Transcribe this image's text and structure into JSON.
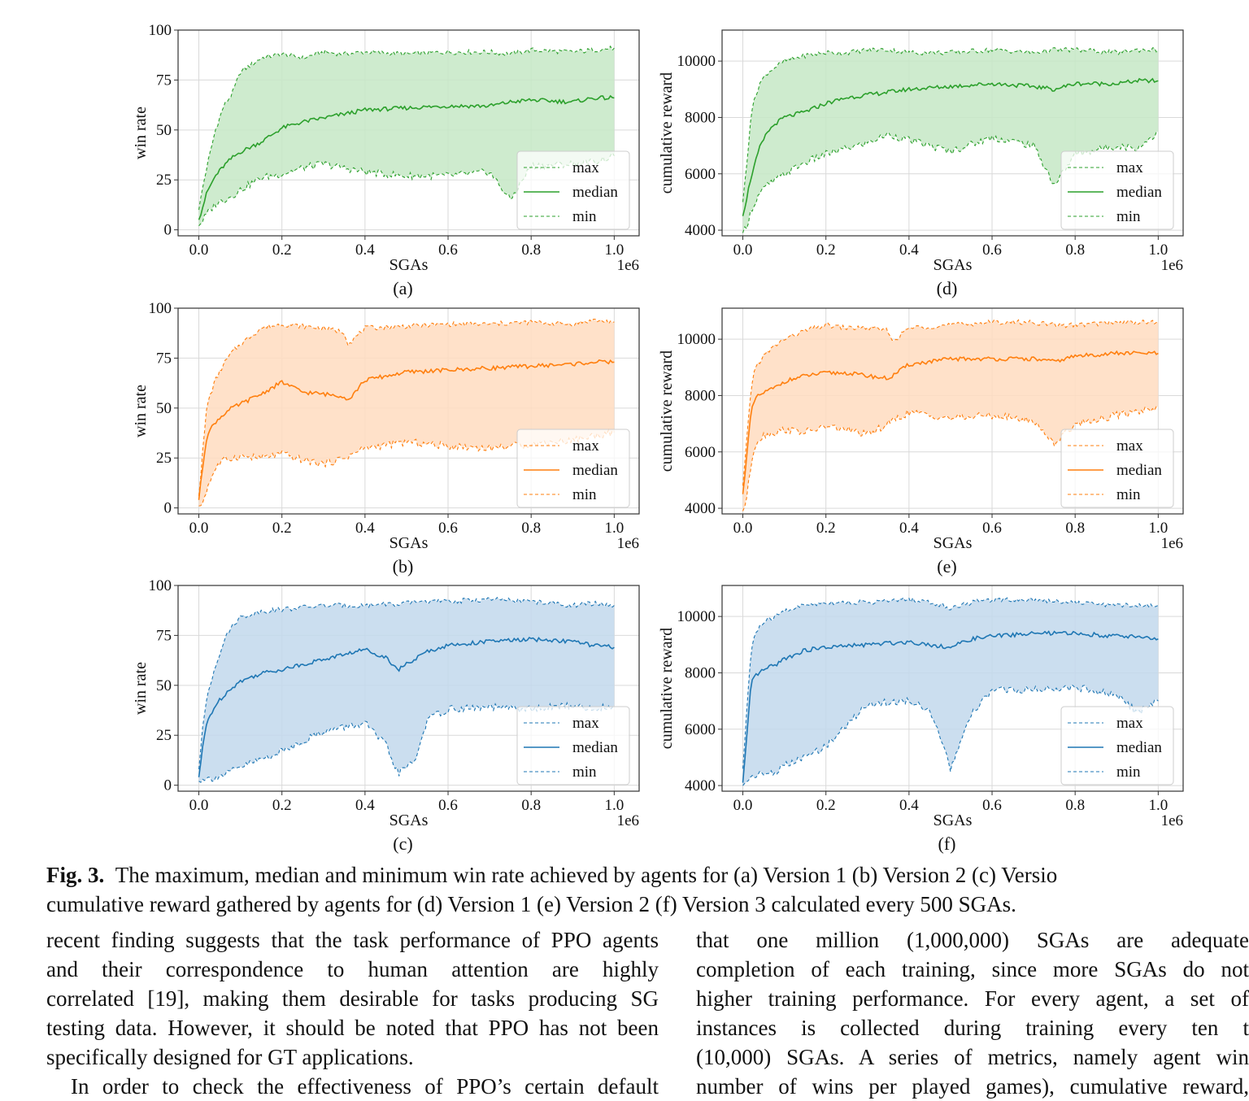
{
  "colors": {
    "green": "#2ca02c",
    "green_fill": "#c6e8c6",
    "orange": "#ff7f0e",
    "orange_fill": "#ffdcbf",
    "blue": "#1f77b4",
    "blue_fill": "#c2d8ec",
    "grid": "#d9d9d9",
    "axis": "#333333"
  },
  "legend": {
    "max": "max",
    "median": "median",
    "min": "min"
  },
  "chart_data": [
    {
      "id": "a",
      "panel_label": "(a)",
      "type": "line",
      "color_key": "green",
      "xlabel": "SGAs",
      "ylabel": "win rate",
      "x_offset_label": "1e6",
      "xlim": [
        -0.05,
        1.06
      ],
      "ylim": [
        -3,
        100
      ],
      "xticks": [
        0.0,
        0.2,
        0.4,
        0.6,
        0.8,
        1.0
      ],
      "xtick_labels": [
        "0.0",
        "0.2",
        "0.4",
        "0.6",
        "0.8",
        "1.0"
      ],
      "yticks": [
        0,
        25,
        50,
        75,
        100
      ],
      "ytick_labels": [
        "0",
        "25",
        "50",
        "75",
        "100"
      ],
      "legend_position": "lower-right",
      "grid": true,
      "x": [
        0.0,
        0.01,
        0.02,
        0.04,
        0.06,
        0.08,
        0.1,
        0.15,
        0.2,
        0.25,
        0.3,
        0.35,
        0.4,
        0.5,
        0.6,
        0.7,
        0.75,
        0.8,
        0.9,
        0.95,
        1.0
      ],
      "series": [
        {
          "name": "max",
          "style": "dashed",
          "values": [
            10,
            22,
            32,
            50,
            62,
            68,
            79,
            86,
            88,
            86,
            89,
            88,
            89,
            88,
            89,
            89,
            88,
            90,
            89,
            90,
            91
          ]
        },
        {
          "name": "median",
          "style": "solid",
          "values": [
            5,
            12,
            19,
            27,
            32,
            36,
            39,
            44,
            51,
            54,
            56,
            58,
            60,
            61,
            62,
            62,
            64,
            65,
            64,
            66,
            66
          ]
        },
        {
          "name": "min",
          "style": "dashed",
          "values": [
            2,
            5,
            8,
            13,
            15,
            17,
            20,
            26,
            28,
            31,
            33,
            31,
            29,
            27,
            27,
            29,
            15,
            32,
            33,
            34,
            37
          ]
        }
      ]
    },
    {
      "id": "d",
      "panel_label": "(d)",
      "type": "line",
      "color_key": "green",
      "xlabel": "SGAs",
      "ylabel": "cumulative reward",
      "x_offset_label": "1e6",
      "xlim": [
        -0.05,
        1.06
      ],
      "ylim": [
        3800,
        11100
      ],
      "xticks": [
        0.0,
        0.2,
        0.4,
        0.6,
        0.8,
        1.0
      ],
      "xtick_labels": [
        "0.0",
        "0.2",
        "0.4",
        "0.6",
        "0.8",
        "1.0"
      ],
      "yticks": [
        4000,
        6000,
        8000,
        10000
      ],
      "ytick_labels": [
        "4000",
        "6000",
        "8000",
        "10000"
      ],
      "legend_position": "lower-right",
      "grid": true,
      "x": [
        0.0,
        0.01,
        0.02,
        0.04,
        0.06,
        0.08,
        0.1,
        0.15,
        0.2,
        0.25,
        0.3,
        0.35,
        0.4,
        0.5,
        0.6,
        0.7,
        0.75,
        0.8,
        0.9,
        0.95,
        1.0
      ],
      "series": [
        {
          "name": "max",
          "style": "dashed",
          "values": [
            5000,
            6400,
            8200,
            9200,
            9600,
            9800,
            10000,
            10200,
            10300,
            10300,
            10400,
            10400,
            10300,
            10300,
            10400,
            10300,
            10400,
            10400,
            10300,
            10400,
            10400
          ]
        },
        {
          "name": "median",
          "style": "solid",
          "values": [
            4500,
            5200,
            5900,
            6900,
            7500,
            7800,
            8000,
            8200,
            8500,
            8700,
            8800,
            8900,
            9000,
            9100,
            9200,
            9100,
            9000,
            9200,
            9200,
            9300,
            9300
          ]
        },
        {
          "name": "min",
          "style": "dashed",
          "values": [
            3900,
            4200,
            4700,
            5300,
            5600,
            5800,
            6000,
            6400,
            6700,
            6900,
            7100,
            7400,
            7200,
            6800,
            7300,
            7000,
            5600,
            6700,
            7000,
            6900,
            7500
          ]
        }
      ]
    },
    {
      "id": "b",
      "panel_label": "(b)",
      "type": "line",
      "color_key": "orange",
      "xlabel": "SGAs",
      "ylabel": "win rate",
      "x_offset_label": "1e6",
      "xlim": [
        -0.05,
        1.06
      ],
      "ylim": [
        -3,
        100
      ],
      "xticks": [
        0.0,
        0.2,
        0.4,
        0.6,
        0.8,
        1.0
      ],
      "xtick_labels": [
        "0.0",
        "0.2",
        "0.4",
        "0.6",
        "0.8",
        "1.0"
      ],
      "yticks": [
        0,
        25,
        50,
        75,
        100
      ],
      "ytick_labels": [
        "0",
        "25",
        "50",
        "75",
        "100"
      ],
      "legend_position": "lower-right",
      "grid": true,
      "x": [
        0.0,
        0.01,
        0.02,
        0.04,
        0.06,
        0.08,
        0.1,
        0.15,
        0.2,
        0.25,
        0.3,
        0.35,
        0.36,
        0.4,
        0.5,
        0.6,
        0.7,
        0.8,
        0.9,
        0.95,
        1.0
      ],
      "series": [
        {
          "name": "max",
          "style": "dashed",
          "values": [
            6,
            30,
            52,
            64,
            72,
            78,
            82,
            90,
            92,
            91,
            90,
            88,
            82,
            90,
            91,
            92,
            92,
            93,
            92,
            94,
            93
          ]
        },
        {
          "name": "median",
          "style": "solid",
          "values": [
            4,
            22,
            37,
            43,
            47,
            50,
            52,
            57,
            63,
            58,
            57,
            56,
            54,
            64,
            68,
            69,
            70,
            71,
            72,
            73,
            73
          ]
        },
        {
          "name": "min",
          "style": "dashed",
          "values": [
            1,
            3,
            10,
            20,
            24,
            25,
            26,
            25,
            27,
            24,
            22,
            25,
            26,
            30,
            33,
            31,
            30,
            32,
            34,
            36,
            38
          ]
        }
      ]
    },
    {
      "id": "e",
      "panel_label": "(e)",
      "type": "line",
      "color_key": "orange",
      "xlabel": "SGAs",
      "ylabel": "cumulative reward",
      "x_offset_label": "1e6",
      "xlim": [
        -0.05,
        1.06
      ],
      "ylim": [
        3800,
        11100
      ],
      "xticks": [
        0.0,
        0.2,
        0.4,
        0.6,
        0.8,
        1.0
      ],
      "xtick_labels": [
        "0.0",
        "0.2",
        "0.4",
        "0.6",
        "0.8",
        "1.0"
      ],
      "yticks": [
        4000,
        6000,
        8000,
        10000
      ],
      "ytick_labels": [
        "4000",
        "6000",
        "8000",
        "10000"
      ],
      "legend_position": "lower-right",
      "grid": true,
      "x": [
        0.0,
        0.01,
        0.02,
        0.03,
        0.05,
        0.08,
        0.1,
        0.15,
        0.2,
        0.25,
        0.3,
        0.35,
        0.36,
        0.4,
        0.5,
        0.6,
        0.7,
        0.75,
        0.8,
        0.9,
        1.0
      ],
      "series": [
        {
          "name": "max",
          "style": "dashed",
          "values": [
            4800,
            6500,
            8300,
            9000,
            9400,
            9800,
            10000,
            10300,
            10500,
            10400,
            10400,
            10300,
            9900,
            10400,
            10500,
            10600,
            10600,
            10500,
            10500,
            10600,
            10600
          ]
        },
        {
          "name": "median",
          "style": "solid",
          "values": [
            4500,
            6000,
            7400,
            7900,
            8100,
            8300,
            8500,
            8700,
            8800,
            8800,
            8700,
            8600,
            8700,
            9100,
            9300,
            9300,
            9300,
            9200,
            9400,
            9500,
            9500
          ]
        },
        {
          "name": "min",
          "style": "dashed",
          "values": [
            3900,
            4400,
            5600,
            6300,
            6600,
            6700,
            6800,
            6700,
            6900,
            6800,
            6600,
            7000,
            7100,
            7400,
            7200,
            7300,
            7100,
            6300,
            7000,
            7300,
            7600
          ]
        }
      ]
    },
    {
      "id": "c",
      "panel_label": "(c)",
      "type": "line",
      "color_key": "blue",
      "xlabel": "SGAs",
      "ylabel": "win rate",
      "x_offset_label": "1e6",
      "xlim": [
        -0.05,
        1.06
      ],
      "ylim": [
        -3,
        100
      ],
      "xticks": [
        0.0,
        0.2,
        0.4,
        0.6,
        0.8,
        1.0
      ],
      "xtick_labels": [
        "0.0",
        "0.2",
        "0.4",
        "0.6",
        "0.8",
        "1.0"
      ],
      "yticks": [
        0,
        25,
        50,
        75,
        100
      ],
      "ytick_labels": [
        "0",
        "25",
        "50",
        "75",
        "100"
      ],
      "legend_position": "lower-right",
      "grid": true,
      "x": [
        0.0,
        0.01,
        0.02,
        0.04,
        0.06,
        0.08,
        0.1,
        0.15,
        0.2,
        0.3,
        0.4,
        0.45,
        0.48,
        0.52,
        0.55,
        0.6,
        0.7,
        0.8,
        0.9,
        0.95,
        1.0
      ],
      "series": [
        {
          "name": "max",
          "style": "dashed",
          "values": [
            8,
            30,
            45,
            60,
            72,
            80,
            84,
            87,
            88,
            90,
            90,
            91,
            90,
            92,
            92,
            92,
            93,
            92,
            90,
            91,
            90
          ]
        },
        {
          "name": "median",
          "style": "solid",
          "values": [
            4,
            20,
            32,
            40,
            45,
            49,
            52,
            56,
            58,
            63,
            68,
            64,
            58,
            63,
            67,
            70,
            72,
            73,
            72,
            70,
            69
          ]
        },
        {
          "name": "min",
          "style": "dashed",
          "values": [
            2,
            4,
            3,
            4,
            5,
            7,
            9,
            13,
            17,
            27,
            31,
            20,
            6,
            12,
            33,
            38,
            39,
            38,
            40,
            38,
            40
          ]
        }
      ]
    },
    {
      "id": "f",
      "panel_label": "(f)",
      "type": "line",
      "color_key": "blue",
      "xlabel": "SGAs",
      "ylabel": "cumulative reward",
      "x_offset_label": "1e6",
      "xlim": [
        -0.05,
        1.06
      ],
      "ylim": [
        3800,
        11100
      ],
      "xticks": [
        0.0,
        0.2,
        0.4,
        0.6,
        0.8,
        1.0
      ],
      "xtick_labels": [
        "0.0",
        "0.2",
        "0.4",
        "0.6",
        "0.8",
        "1.0"
      ],
      "yticks": [
        4000,
        6000,
        8000,
        10000
      ],
      "ytick_labels": [
        "4000",
        "6000",
        "8000",
        "10000"
      ],
      "legend_position": "lower-right",
      "grid": true,
      "x": [
        0.0,
        0.01,
        0.02,
        0.03,
        0.05,
        0.08,
        0.1,
        0.15,
        0.2,
        0.3,
        0.4,
        0.45,
        0.5,
        0.55,
        0.6,
        0.7,
        0.8,
        0.9,
        0.95,
        1.0
      ],
      "series": [
        {
          "name": "max",
          "style": "dashed",
          "values": [
            4600,
            6800,
            8800,
            9400,
            9800,
            10000,
            10200,
            10400,
            10500,
            10500,
            10600,
            10500,
            10300,
            10500,
            10600,
            10600,
            10500,
            10400,
            10400,
            10400
          ]
        },
        {
          "name": "median",
          "style": "solid",
          "values": [
            4100,
            5800,
            7600,
            7900,
            8100,
            8300,
            8500,
            8800,
            8900,
            9000,
            9100,
            9000,
            8900,
            9200,
            9300,
            9400,
            9400,
            9300,
            9300,
            9200
          ]
        },
        {
          "name": "min",
          "style": "dashed",
          "values": [
            4000,
            4200,
            4300,
            4400,
            4400,
            4500,
            4700,
            5000,
            5400,
            6900,
            7000,
            6700,
            4600,
            6500,
            7400,
            7400,
            7500,
            7200,
            6600,
            7000
          ]
        }
      ]
    }
  ],
  "caption": {
    "fig_label": "Fig. 3.",
    "line1": "The maximum, median and minimum win rate achieved by agents for (a) Version 1 (b) Version 2 (c) Versio",
    "line2": "cumulative reward gathered by agents for (d) Version 1 (e) Version 2 (f) Version 3 calculated every 500 SGAs."
  },
  "body_left": {
    "lines": [
      "recent finding suggests that the task performance of PPO agents",
      "and their correspondence to human attention are highly",
      "correlated [19], making them desirable for tasks producing SG",
      "testing data. However, it should be noted that PPO has not been",
      "specifically designed for GT applications.",
      "In order to check the effectiveness of PPO’s certain default"
    ]
  },
  "body_right": {
    "lines": [
      "that one million (1,000,000) SGAs are adequate",
      "completion of each training, since more SGAs do not",
      "higher training performance. For every agent, a set of",
      "instances is collected during training every ten t",
      "(10,000) SGAs. A series of metrics, namely agent win",
      "number of wins per played games), cumulative reward,"
    ]
  }
}
